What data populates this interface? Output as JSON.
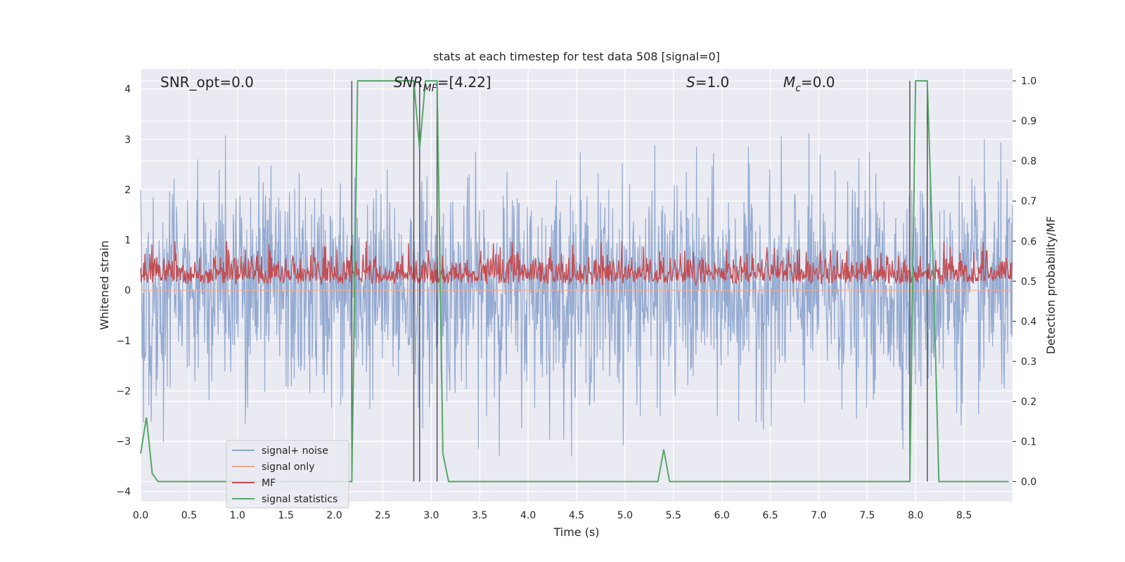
{
  "chart_data": {
    "type": "line",
    "title": "stats at each timestep for test data 508 [signal=0]",
    "xlabel": "Time (s)",
    "ylabel_left": "Whitened strain",
    "ylabel_right": "Detection probability/MF",
    "xlim": [
      0.0,
      9.0
    ],
    "ylim_left": [
      -4.2,
      4.4
    ],
    "ylim_right": [
      -0.05,
      1.03
    ],
    "x_ticks": [
      "0.0",
      "0.5",
      "1.0",
      "1.5",
      "2.0",
      "2.5",
      "3.0",
      "3.5",
      "4.0",
      "4.5",
      "5.0",
      "5.5",
      "6.0",
      "6.5",
      "7.0",
      "7.5",
      "8.0",
      "8.5"
    ],
    "y_left_ticks": [
      "4",
      "3",
      "2",
      "1",
      "0",
      "−1",
      "−2",
      "−3",
      "−4"
    ],
    "y_right_ticks": [
      "1.0",
      "0.9",
      "0.8",
      "0.7",
      "0.6",
      "0.5",
      "0.4",
      "0.3",
      "0.2",
      "0.1",
      "0.0"
    ],
    "grid": true,
    "legend_position": "lower-left",
    "annotations": [
      {
        "id": "snr_opt",
        "text": "SNR_opt=0.0"
      },
      {
        "id": "snr_mf",
        "text": "SNR_MF=[4.22]",
        "main": "SNR",
        "sub": "MF",
        "rest": "=[4.22]"
      },
      {
        "id": "s",
        "text": "S=1.0",
        "main": "S",
        "rest": "=1.0"
      },
      {
        "id": "mc",
        "text": "M_c=0.0",
        "main": "M",
        "sub": "c",
        "rest": "=0.0"
      }
    ],
    "series": [
      {
        "name": "signal+ noise",
        "color": "#8fa6cf",
        "description": "whitened noise, approx. ±2 amplitude, spikes to ±3.4",
        "y_range_left": [
          -3.3,
          3.4
        ]
      },
      {
        "name": "signal only",
        "color": "#f0a98e",
        "values": [],
        "y_left": 0.0
      },
      {
        "name": "MF",
        "color": "#c44e52",
        "description": "matched filter output on right axis",
        "y_range_right": [
          0.49,
          0.6
        ]
      },
      {
        "name": "signal statistics",
        "color": "#55a868",
        "x": [
          0.0,
          0.06,
          0.12,
          0.18,
          2.18,
          2.24,
          2.82,
          2.88,
          2.94,
          3.0,
          3.06,
          3.12,
          3.18,
          5.34,
          5.4,
          5.46,
          7.94,
          8.0,
          8.06,
          8.12,
          8.18,
          8.24,
          8.3,
          8.96
        ],
        "y": [
          0.07,
          0.16,
          0.02,
          0.0,
          0.0,
          1.0,
          1.0,
          0.83,
          1.0,
          1.0,
          1.0,
          0.07,
          0.0,
          0.0,
          0.08,
          0.0,
          0.0,
          1.0,
          1.0,
          1.0,
          0.55,
          0.0,
          0.0,
          0.0
        ]
      }
    ],
    "vertical_markers": [
      {
        "x": 2.18,
        "y_top": 1.0,
        "y_bottom": 0.0
      },
      {
        "x": 2.82,
        "y_top": 1.0,
        "y_bottom": 0.0
      },
      {
        "x": 2.88,
        "y_top": 1.0,
        "y_bottom": 0.0
      },
      {
        "x": 3.06,
        "y_top": 1.0,
        "y_bottom": 0.0
      },
      {
        "x": 7.94,
        "y_top": 1.0,
        "y_bottom": 0.0
      },
      {
        "x": 8.12,
        "y_top": 1.0,
        "y_bottom": 0.0
      }
    ]
  },
  "colors": {
    "plot_background": "#eaeaf2",
    "grid": "#ffffff",
    "marker_lines": "#555555"
  }
}
